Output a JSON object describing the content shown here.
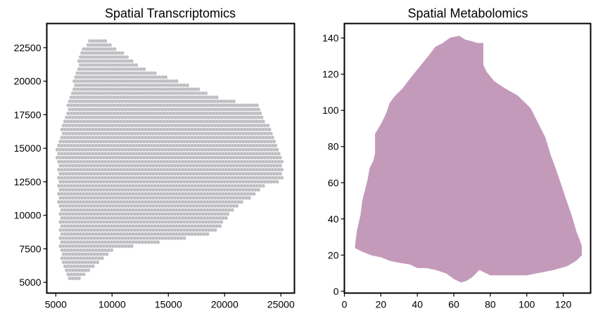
{
  "chart_data": [
    {
      "type": "scatter",
      "title": "Spatial Transcriptomics",
      "xlabel": "",
      "ylabel": "",
      "xlim": [
        4200,
        26200
      ],
      "ylim": [
        4200,
        24300
      ],
      "xticks": [
        5000,
        10000,
        15000,
        20000,
        25000
      ],
      "yticks": [
        5000,
        7500,
        10000,
        12500,
        15000,
        17500,
        20000,
        22500
      ],
      "xtick_labels": [
        "5000",
        "10000",
        "15000",
        "20000",
        "25000"
      ],
      "ytick_labels": [
        "5000",
        "7500",
        "10000",
        "12500",
        "15000",
        "17500",
        "20000",
        "22500"
      ],
      "grid": false,
      "legend": "none",
      "point_color": "#c0c0c4",
      "spot_spacing": [
        275,
        300
      ],
      "tissue_outline": [
        [
          8000,
          23300
        ],
        [
          9000,
          23300
        ],
        [
          12700,
          21000
        ],
        [
          16500,
          19800
        ],
        [
          20000,
          18600
        ],
        [
          22900,
          18300
        ],
        [
          24600,
          15500
        ],
        [
          25100,
          14000
        ],
        [
          25100,
          12600
        ],
        [
          23800,
          12300
        ],
        [
          20500,
          10200
        ],
        [
          19400,
          8900
        ],
        [
          18200,
          8500
        ],
        [
          12500,
          7800
        ],
        [
          10300,
          7500
        ],
        [
          9300,
          6900
        ],
        [
          7600,
          5500
        ],
        [
          6600,
          5100
        ],
        [
          5900,
          5400
        ],
        [
          5500,
          6500
        ],
        [
          5400,
          7600
        ],
        [
          5100,
          14800
        ],
        [
          5700,
          17100
        ],
        [
          6600,
          19800
        ],
        [
          7100,
          21900
        ]
      ]
    },
    {
      "type": "area",
      "title": "Spatial Metabolomics",
      "xlabel": "",
      "ylabel": "",
      "xlim": [
        0,
        135
      ],
      "ylim": [
        -1,
        148
      ],
      "xticks": [
        0,
        20,
        40,
        60,
        80,
        100,
        120
      ],
      "yticks": [
        0,
        20,
        40,
        60,
        80,
        100,
        120,
        140
      ],
      "xtick_labels": [
        "0",
        "20",
        "40",
        "60",
        "80",
        "100",
        "120"
      ],
      "ytick_labels": [
        "0",
        "20",
        "40",
        "60",
        "80",
        "100",
        "120",
        "140"
      ],
      "grid": false,
      "legend": "none",
      "fill_color": "#c49aba",
      "outline": [
        [
          6,
          25
        ],
        [
          7,
          33
        ],
        [
          9,
          42
        ],
        [
          10,
          50
        ],
        [
          12,
          58
        ],
        [
          13,
          62
        ],
        [
          14,
          68
        ],
        [
          16,
          72
        ],
        [
          17,
          76
        ],
        [
          17,
          87
        ],
        [
          20,
          92
        ],
        [
          23,
          98
        ],
        [
          25,
          104
        ],
        [
          28,
          108
        ],
        [
          32,
          112
        ],
        [
          35,
          116
        ],
        [
          39,
          121
        ],
        [
          43,
          126
        ],
        [
          47,
          131
        ],
        [
          50,
          135
        ],
        [
          54,
          137
        ],
        [
          58,
          140
        ],
        [
          63,
          141
        ],
        [
          66,
          139
        ],
        [
          70,
          138
        ],
        [
          73,
          137
        ],
        [
          76,
          137
        ],
        [
          76,
          125
        ],
        [
          78,
          121
        ],
        [
          82,
          116
        ],
        [
          88,
          112
        ],
        [
          95,
          108
        ],
        [
          99,
          104
        ],
        [
          102,
          101
        ],
        [
          106,
          93
        ],
        [
          110,
          85
        ],
        [
          113,
          75
        ],
        [
          116,
          67
        ],
        [
          119,
          58
        ],
        [
          122,
          49
        ],
        [
          125,
          40
        ],
        [
          127,
          33
        ],
        [
          129,
          28
        ],
        [
          130,
          25
        ],
        [
          130,
          20
        ],
        [
          127,
          17
        ],
        [
          122,
          14
        ],
        [
          115,
          12
        ],
        [
          110,
          11
        ],
        [
          100,
          9
        ],
        [
          88,
          9
        ],
        [
          80,
          9
        ],
        [
          74,
          12
        ],
        [
          70,
          8
        ],
        [
          67,
          6
        ],
        [
          64,
          5
        ],
        [
          60,
          7
        ],
        [
          56,
          10
        ],
        [
          50,
          12
        ],
        [
          45,
          13
        ],
        [
          40,
          13
        ],
        [
          36,
          15
        ],
        [
          30,
          16
        ],
        [
          25,
          17
        ],
        [
          20,
          19
        ],
        [
          15,
          20
        ],
        [
          10,
          22
        ],
        [
          6,
          24
        ]
      ]
    }
  ]
}
